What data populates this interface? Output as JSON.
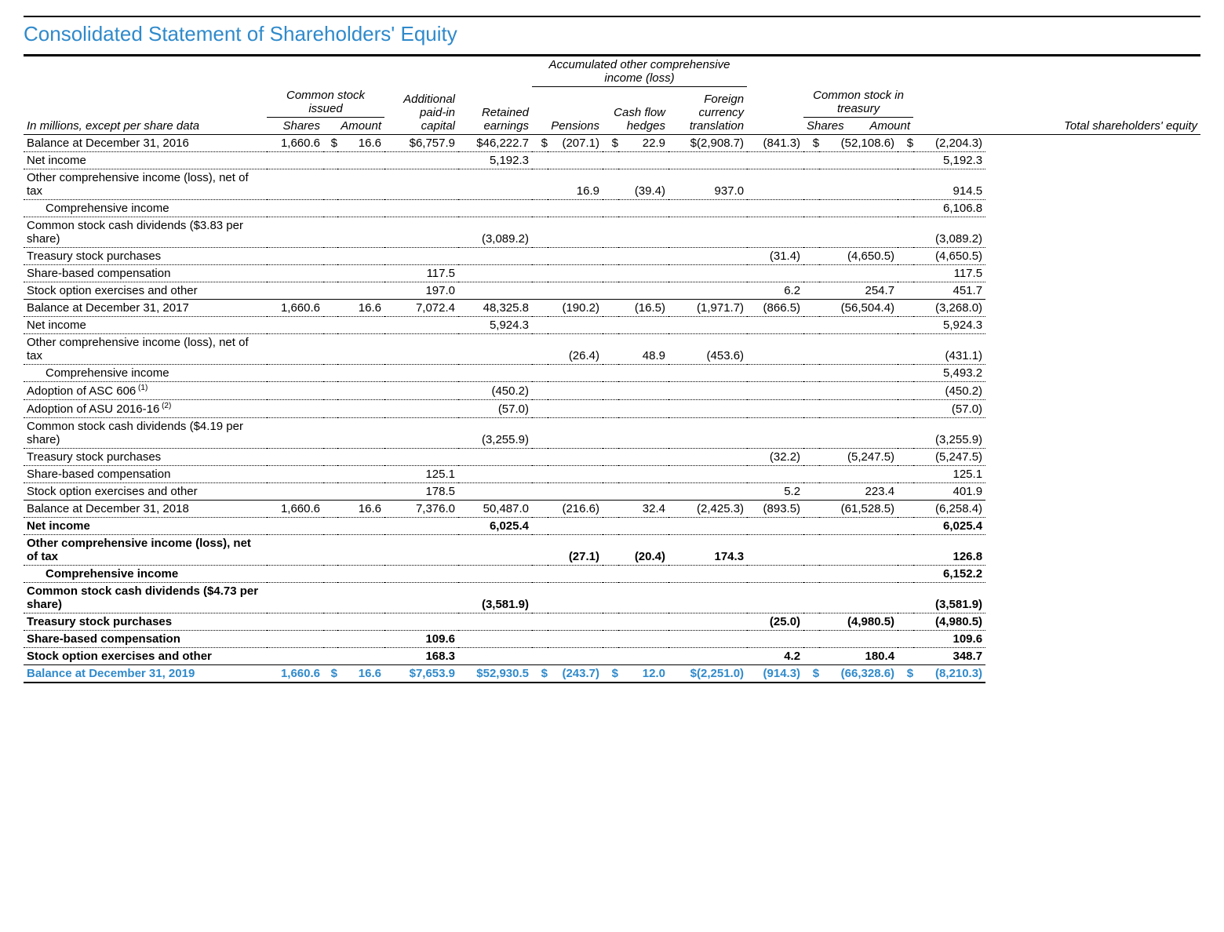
{
  "title": "Consolidated Statement of Shareholders' Equity",
  "headers": {
    "group_aoci": "Accumulated other comprehensive income (loss)",
    "group_common_issued": "Common stock issued",
    "group_treasury": "Common stock in treasury",
    "additional_capital": "Additional paid-in capital",
    "retained": "Retained earnings",
    "pensions": "Pensions",
    "cash_flow": "Cash flow hedges",
    "fx": "Foreign currency translation",
    "shares": "Shares",
    "amount": "Amount",
    "total": "Total shareholders' equity",
    "left": "In millions, except per share data"
  },
  "rows": [
    {
      "label": "Balance at December 31, 2016",
      "style": "dotted",
      "cells": [
        "1,660.6",
        "$",
        "16.6",
        "$6,757.9",
        "$46,222.7",
        "$",
        "(207.1)",
        "$",
        "22.9",
        "$(2,908.7)",
        "(841.3)",
        "$",
        "(52,108.6)",
        "$",
        "(2,204.3)"
      ]
    },
    {
      "label": "Net income",
      "style": "dotted",
      "cells": [
        "",
        "",
        "",
        "",
        "5,192.3",
        "",
        "",
        "",
        "",
        "",
        "",
        "",
        "",
        "",
        "5,192.3"
      ]
    },
    {
      "label": "Other comprehensive income (loss), net of tax",
      "style": "dotted",
      "cells": [
        "",
        "",
        "",
        "",
        "",
        "",
        "16.9",
        "",
        "(39.4)",
        "937.0",
        "",
        "",
        "",
        "",
        "914.5"
      ]
    },
    {
      "label": "Comprehensive income",
      "indent": true,
      "style": "dotted",
      "cells": [
        "",
        "",
        "",
        "",
        "",
        "",
        "",
        "",
        "",
        "",
        "",
        "",
        "",
        "",
        "6,106.8"
      ]
    },
    {
      "label": "Common stock cash dividends ($3.83 per share)",
      "style": "dotted",
      "cells": [
        "",
        "",
        "",
        "",
        "(3,089.2)",
        "",
        "",
        "",
        "",
        "",
        "",
        "",
        "",
        "",
        "(3,089.2)"
      ]
    },
    {
      "label": "Treasury stock purchases",
      "style": "dotted",
      "cells": [
        "",
        "",
        "",
        "",
        "",
        "",
        "",
        "",
        "",
        "",
        "(31.4)",
        "",
        "(4,650.5)",
        "",
        "(4,650.5)"
      ]
    },
    {
      "label": "Share-based compensation",
      "style": "dotted",
      "cells": [
        "",
        "",
        "",
        "117.5",
        "",
        "",
        "",
        "",
        "",
        "",
        "",
        "",
        "",
        "",
        "117.5"
      ]
    },
    {
      "label": "Stock option exercises and other",
      "style": "solid",
      "cells": [
        "",
        "",
        "",
        "197.0",
        "",
        "",
        "",
        "",
        "",
        "",
        "6.2",
        "",
        "254.7",
        "",
        "451.7"
      ]
    },
    {
      "label": "Balance at December 31, 2017",
      "style": "dotted",
      "cells": [
        "1,660.6",
        "",
        "16.6",
        "7,072.4",
        "48,325.8",
        "",
        "(190.2)",
        "",
        "(16.5)",
        "(1,971.7)",
        "(866.5)",
        "",
        "(56,504.4)",
        "",
        "(3,268.0)"
      ]
    },
    {
      "label": "Net income",
      "style": "dotted",
      "cells": [
        "",
        "",
        "",
        "",
        "5,924.3",
        "",
        "",
        "",
        "",
        "",
        "",
        "",
        "",
        "",
        "5,924.3"
      ]
    },
    {
      "label": "Other comprehensive income (loss), net of tax",
      "style": "dotted",
      "cells": [
        "",
        "",
        "",
        "",
        "",
        "",
        "(26.4)",
        "",
        "48.9",
        "(453.6)",
        "",
        "",
        "",
        "",
        "(431.1)"
      ]
    },
    {
      "label": "Comprehensive income",
      "indent": true,
      "style": "dotted",
      "cells": [
        "",
        "",
        "",
        "",
        "",
        "",
        "",
        "",
        "",
        "",
        "",
        "",
        "",
        "",
        "5,493.2"
      ]
    },
    {
      "label": "Adoption of ASC 606",
      "sup": "(1)",
      "style": "dotted",
      "cells": [
        "",
        "",
        "",
        "",
        "(450.2)",
        "",
        "",
        "",
        "",
        "",
        "",
        "",
        "",
        "",
        "(450.2)"
      ]
    },
    {
      "label": "Adoption of ASU 2016-16",
      "sup": "(2)",
      "style": "dotted",
      "cells": [
        "",
        "",
        "",
        "",
        "(57.0)",
        "",
        "",
        "",
        "",
        "",
        "",
        "",
        "",
        "",
        "(57.0)"
      ]
    },
    {
      "label": "Common stock cash dividends ($4.19 per share)",
      "style": "dotted",
      "cells": [
        "",
        "",
        "",
        "",
        "(3,255.9)",
        "",
        "",
        "",
        "",
        "",
        "",
        "",
        "",
        "",
        "(3,255.9)"
      ]
    },
    {
      "label": "Treasury stock purchases",
      "style": "dotted",
      "cells": [
        "",
        "",
        "",
        "",
        "",
        "",
        "",
        "",
        "",
        "",
        "(32.2)",
        "",
        "(5,247.5)",
        "",
        "(5,247.5)"
      ]
    },
    {
      "label": "Share-based compensation",
      "style": "dotted",
      "cells": [
        "",
        "",
        "",
        "125.1",
        "",
        "",
        "",
        "",
        "",
        "",
        "",
        "",
        "",
        "",
        "125.1"
      ]
    },
    {
      "label": "Stock option exercises and other",
      "style": "solid",
      "cells": [
        "",
        "",
        "",
        "178.5",
        "",
        "",
        "",
        "",
        "",
        "",
        "5.2",
        "",
        "223.4",
        "",
        "401.9"
      ]
    },
    {
      "label": "Balance at December 31, 2018",
      "style": "dotted",
      "cells": [
        "1,660.6",
        "",
        "16.6",
        "7,376.0",
        "50,487.0",
        "",
        "(216.6)",
        "",
        "32.4",
        "(2,425.3)",
        "(893.5)",
        "",
        "(61,528.5)",
        "",
        "(6,258.4)"
      ]
    },
    {
      "label": "Net income",
      "style": "dotted",
      "bold": true,
      "cells": [
        "",
        "",
        "",
        "",
        "6,025.4",
        "",
        "",
        "",
        "",
        "",
        "",
        "",
        "",
        "",
        "6,025.4"
      ]
    },
    {
      "label": "Other comprehensive income (loss), net of tax",
      "style": "dotted",
      "bold": true,
      "cells": [
        "",
        "",
        "",
        "",
        "",
        "",
        "(27.1)",
        "",
        "(20.4)",
        "174.3",
        "",
        "",
        "",
        "",
        "126.8"
      ]
    },
    {
      "label": "Comprehensive income",
      "indent": true,
      "style": "dotted",
      "bold": true,
      "cells": [
        "",
        "",
        "",
        "",
        "",
        "",
        "",
        "",
        "",
        "",
        "",
        "",
        "",
        "",
        "6,152.2"
      ]
    },
    {
      "label": "Common stock cash dividends ($4.73 per share)",
      "style": "dotted",
      "bold": true,
      "cells": [
        "",
        "",
        "",
        "",
        "(3,581.9)",
        "",
        "",
        "",
        "",
        "",
        "",
        "",
        "",
        "",
        "(3,581.9)"
      ]
    },
    {
      "label": "Treasury stock purchases",
      "style": "dotted",
      "bold": true,
      "cells": [
        "",
        "",
        "",
        "",
        "",
        "",
        "",
        "",
        "",
        "",
        "(25.0)",
        "",
        "(4,980.5)",
        "",
        "(4,980.5)"
      ]
    },
    {
      "label": "Share-based compensation",
      "style": "dotted",
      "bold": true,
      "cells": [
        "",
        "",
        "",
        "109.6",
        "",
        "",
        "",
        "",
        "",
        "",
        "",
        "",
        "",
        "",
        "109.6"
      ]
    },
    {
      "label": "Stock option exercises and other",
      "style": "solid",
      "bold": true,
      "cells": [
        "",
        "",
        "",
        "168.3",
        "",
        "",
        "",
        "",
        "",
        "",
        "4.2",
        "",
        "180.4",
        "",
        "348.7"
      ]
    },
    {
      "label": "Balance at December 31, 2019",
      "style": "final",
      "bold": true,
      "blue": true,
      "cells": [
        "1,660.6",
        "$",
        "16.6",
        "$7,653.9",
        "$52,930.5",
        "$",
        "(243.7)",
        "$",
        "12.0",
        "$(2,251.0)",
        "(914.3)",
        "$",
        "(66,328.6)",
        "$",
        "(8,210.3)"
      ]
    }
  ],
  "colwidths": [
    "310",
    "72",
    "18",
    "60",
    "94",
    "94",
    "20",
    "70",
    "20",
    "64",
    "100",
    "72",
    "20",
    "100",
    "20",
    "92"
  ]
}
